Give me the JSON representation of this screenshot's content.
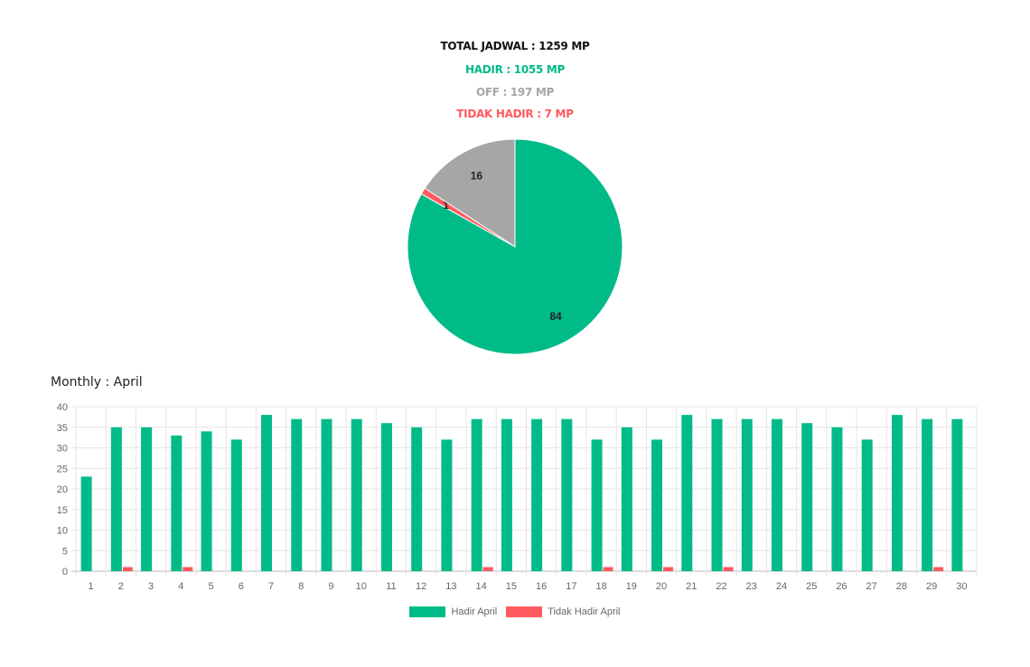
{
  "summary": {
    "total": "TOTAL JADWAL : 1259 MP",
    "hadir": "HADIR : 1055 MP",
    "off": "OFF : 197 MP",
    "tidak_hadir": "TIDAK HADIR : 7 MP"
  },
  "monthly_title": "Monthly : April",
  "colors": {
    "hadir": "#00bb88",
    "off": "#a6a6a6",
    "tidak_hadir": "#ff5a5f"
  },
  "chart_data": [
    {
      "type": "pie",
      "slices": [
        {
          "label": "HADIR",
          "value": 84,
          "color": "#00bb88"
        },
        {
          "label": "TIDAK HADIR",
          "value": 1,
          "color": "#ff5a5f"
        },
        {
          "label": "OFF",
          "value": 16,
          "color": "#a6a6a6"
        }
      ]
    },
    {
      "type": "bar",
      "title": "Monthly : April",
      "categories": [
        "1",
        "2",
        "3",
        "4",
        "5",
        "6",
        "7",
        "8",
        "9",
        "10",
        "11",
        "12",
        "13",
        "14",
        "15",
        "16",
        "17",
        "18",
        "19",
        "20",
        "21",
        "22",
        "23",
        "24",
        "25",
        "26",
        "27",
        "28",
        "29",
        "30"
      ],
      "series": [
        {
          "name": "Hadir April",
          "color": "#00bb88",
          "values": [
            23,
            35,
            35,
            33,
            34,
            32,
            38,
            37,
            37,
            37,
            36,
            35,
            32,
            37,
            37,
            37,
            37,
            32,
            35,
            32,
            38,
            37,
            37,
            37,
            36,
            35,
            32,
            38,
            37,
            37
          ]
        },
        {
          "name": "Tidak Hadir April",
          "color": "#ff5a5f",
          "values": [
            0,
            1,
            0,
            1,
            0,
            0,
            0,
            0,
            0,
            0,
            0,
            0,
            0,
            1,
            0,
            0,
            0,
            1,
            0,
            1,
            0,
            1,
            0,
            0,
            0,
            0,
            0,
            0,
            1,
            0
          ]
        }
      ],
      "ylim": [
        0,
        40
      ],
      "yticks": [
        0,
        5,
        10,
        15,
        20,
        25,
        30,
        35,
        40
      ],
      "grid": true,
      "legend": "bottom"
    }
  ]
}
